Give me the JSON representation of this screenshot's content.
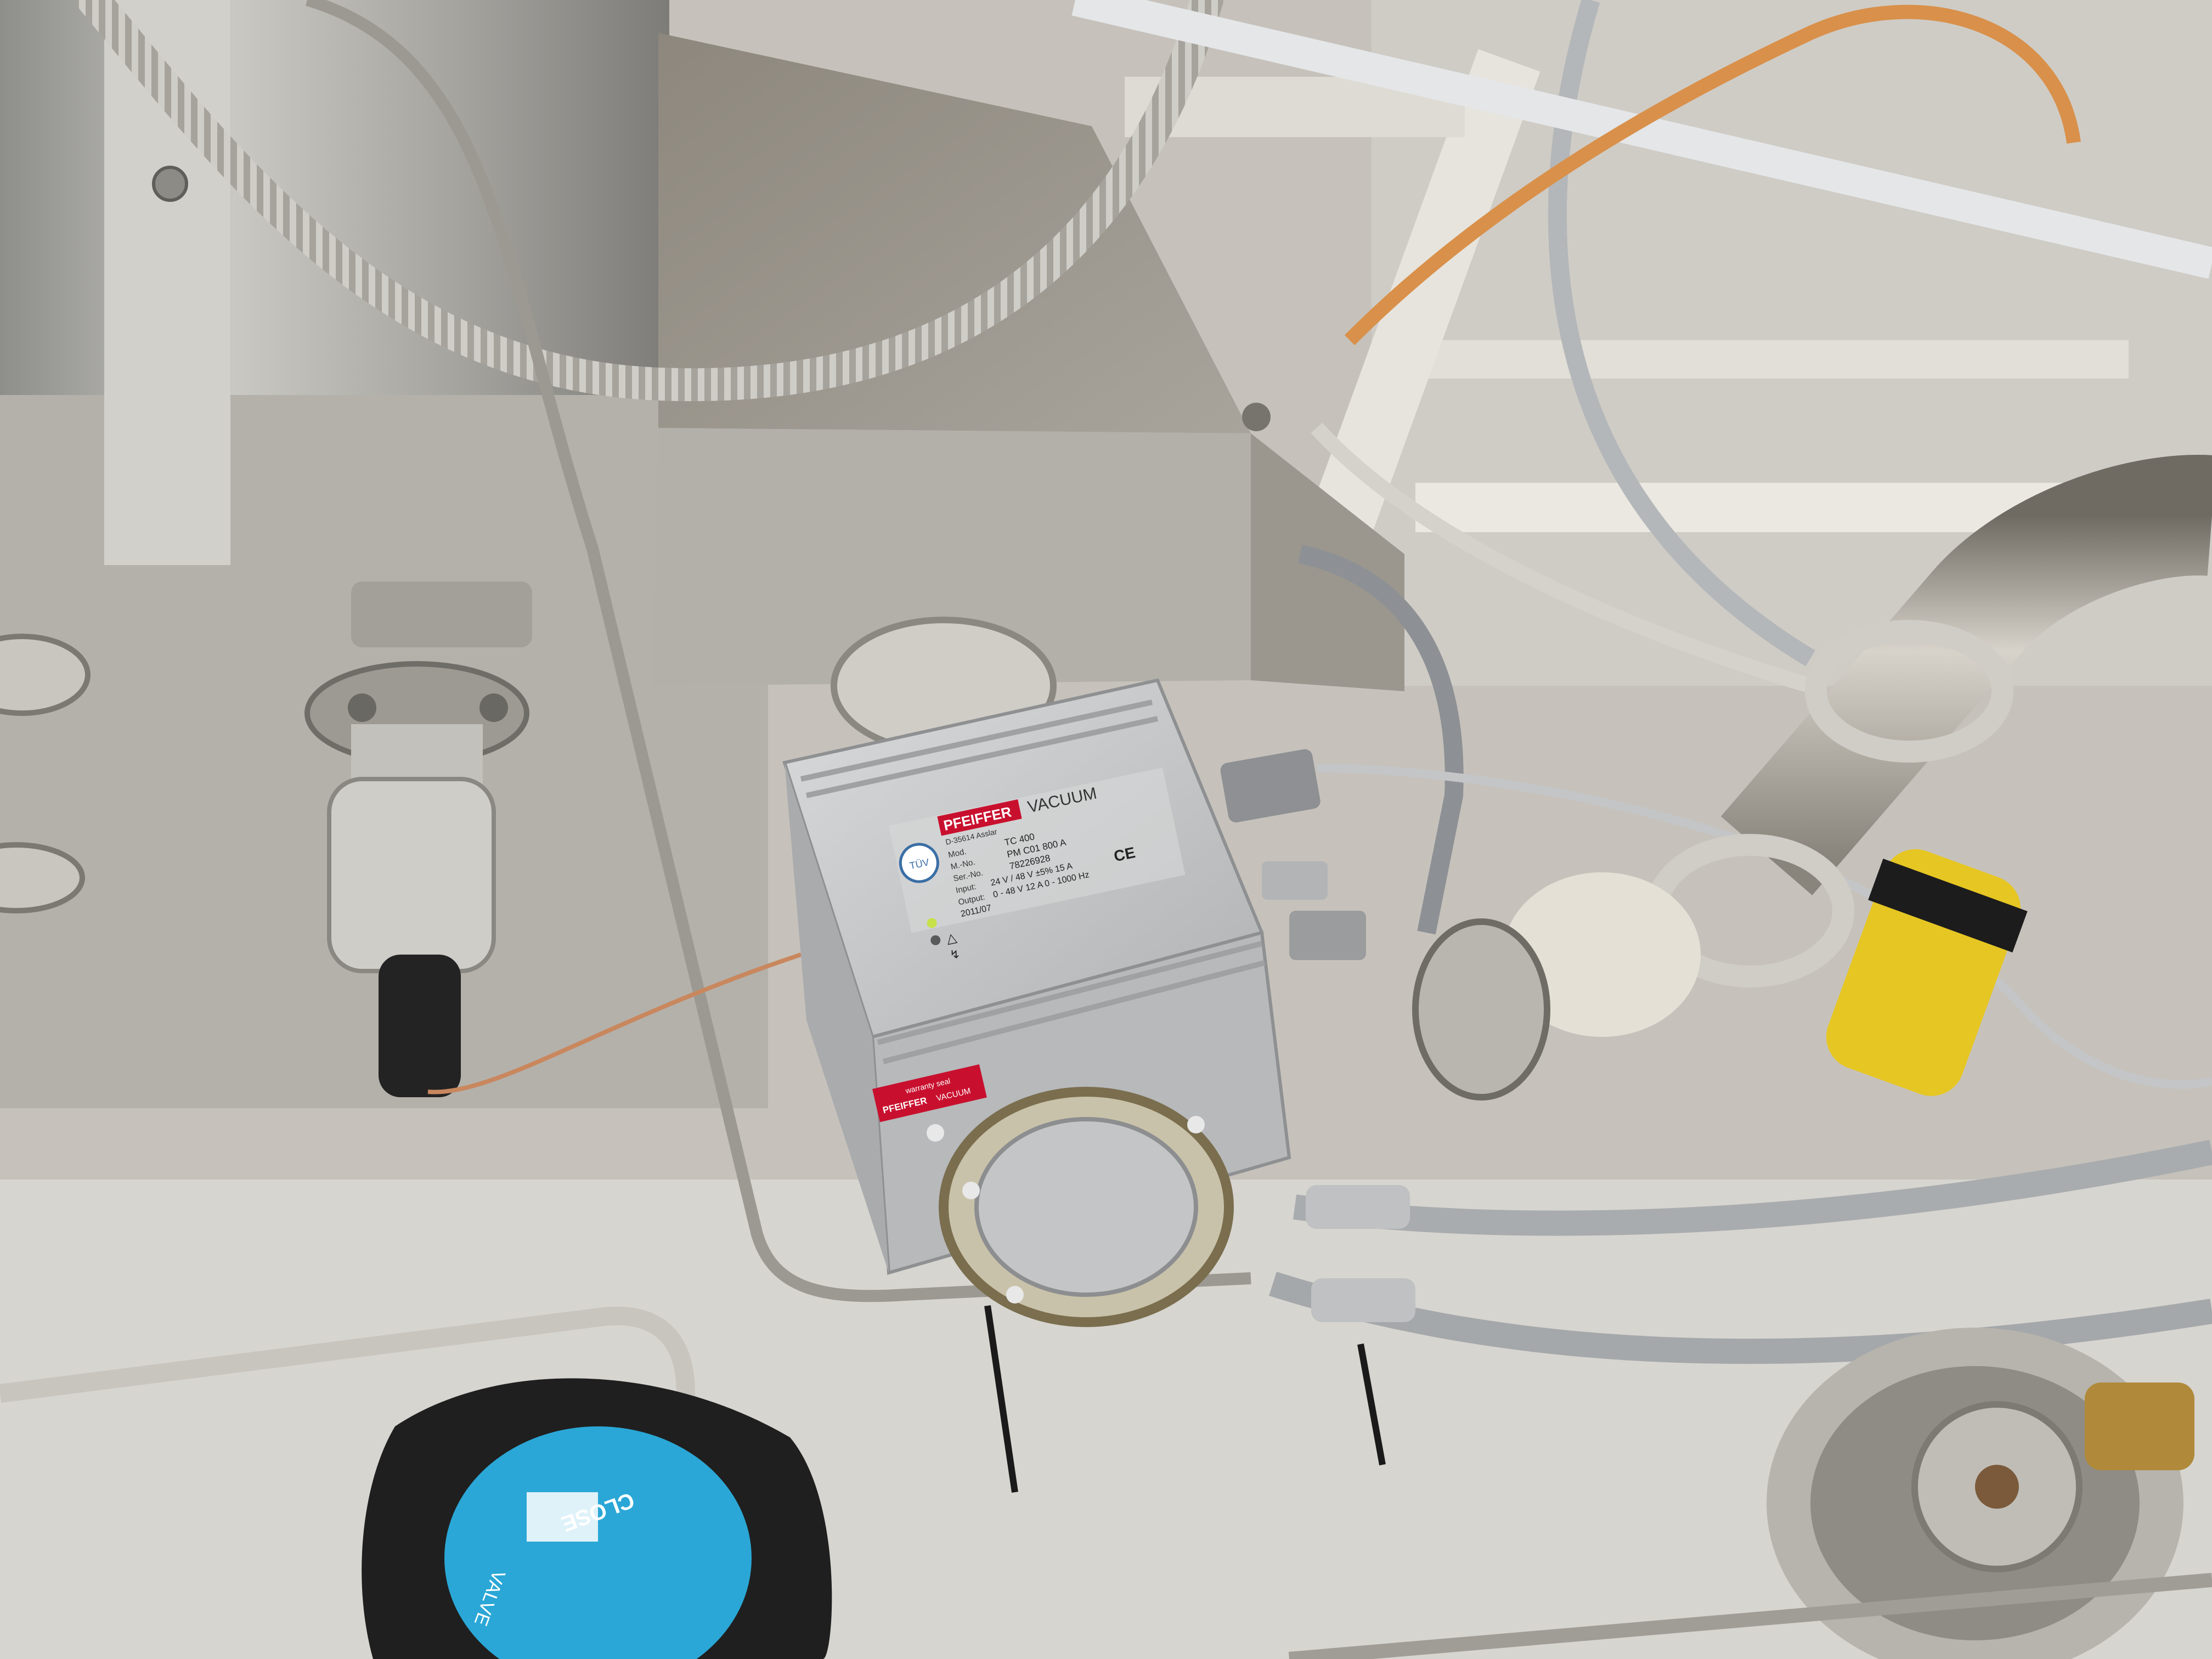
{
  "controller": {
    "brand": "PFEIFFER",
    "brand_suffix": "VACUUM",
    "address": "D-35614 Asslar",
    "model_label": "Mod.",
    "model": "TC 400",
    "part_label": "M.-No.",
    "part_no": "PM C01 800 A",
    "serial_label": "Ser.-No.",
    "serial_no": "78226928",
    "input_label": "Input:",
    "input_spec": "24 V / 48 V ±5% 15 A",
    "output_label": "Output:",
    "output_spec": "0 - 48 V 12 A 0 - 1000 Hz",
    "date": "2011/07",
    "ce_mark": "CE",
    "tuv": "TÜV",
    "warranty_text": "warranty seal",
    "warranty_brand": "PFEIFFER",
    "warranty_suffix": "VACUUM"
  },
  "knob": {
    "brand": "CLOSE",
    "brand_sub": "VALVE"
  },
  "colors": {
    "steel": "#a8a8a4",
    "wall": "#c9c5bd",
    "controller_body": "#c2c4c6",
    "pfeiffer_red": "#c8102e",
    "knob_blue": "#2aa7d6",
    "cable_orange": "#d9904a",
    "cable_gray": "#a9acae",
    "clamp_yellow": "#e6c623"
  },
  "icons": [
    "warning-icon",
    "lightning-icon",
    "ce-mark-icon",
    "tuv-icon"
  ]
}
